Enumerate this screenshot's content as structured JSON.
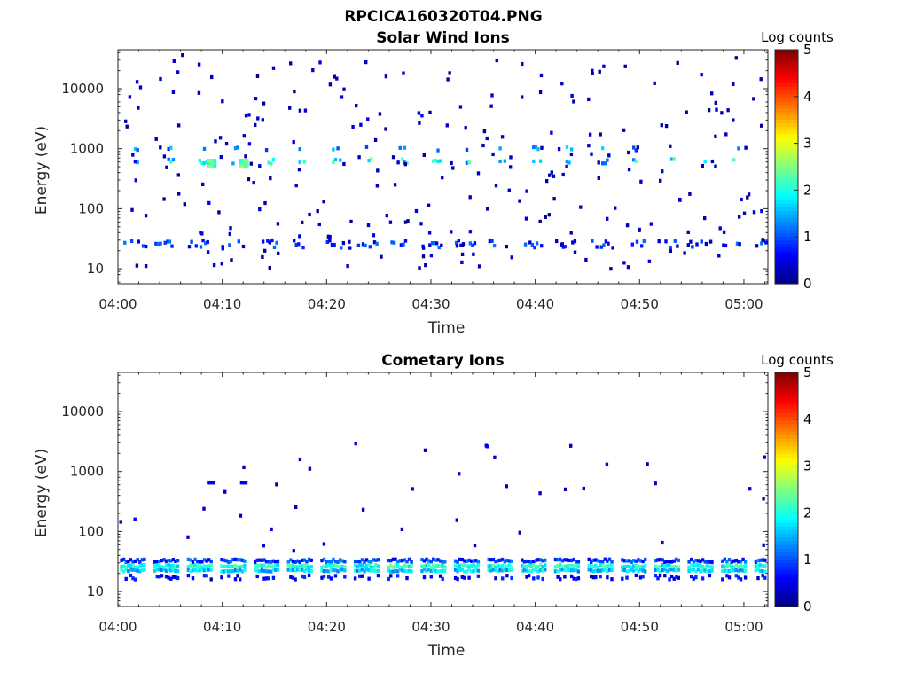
{
  "figure": {
    "title": "RPCICA160320T04.PNG"
  },
  "chart_data": [
    {
      "type": "heatmap",
      "title": "Solar Wind Ions",
      "xlabel": "Time",
      "ylabel": "Energy (eV)",
      "colorbar_label": "Log counts",
      "xticks": [
        "04:00",
        "04:10",
        "04:20",
        "04:30",
        "04:40",
        "04:50",
        "05:00"
      ],
      "xlim_minutes": [
        0,
        62.3
      ],
      "yticks": [
        "10",
        "100",
        "1000",
        "10000"
      ],
      "ylim_log10": [
        0.75,
        4.65
      ],
      "yscale": "log",
      "clim": [
        0,
        5
      ],
      "clim_ticks": [
        "0",
        "1",
        "2",
        "3",
        "4",
        "5"
      ],
      "colormap": "jet",
      "scan_period_min": 3.2,
      "dominant_bands": [
        {
          "energy_eV": 27,
          "log_counts": 0.7,
          "note": "intermittent every scan"
        },
        {
          "energy_eV": 650,
          "log_counts": 1.6,
          "note": "peaks ~2.6 near 04:09 and 04:12"
        },
        {
          "energy_eV": 1050,
          "log_counts": 1.2,
          "note": "intermittent"
        }
      ],
      "grid": false
    },
    {
      "type": "heatmap",
      "title": "Cometary Ions",
      "xlabel": "Time",
      "ylabel": "Energy (eV)",
      "colorbar_label": "Log counts",
      "xticks": [
        "04:00",
        "04:10",
        "04:20",
        "04:30",
        "04:40",
        "04:50",
        "05:00"
      ],
      "xlim_minutes": [
        0,
        62.3
      ],
      "yticks": [
        "10",
        "100",
        "1000",
        "10000"
      ],
      "ylim_log10": [
        0.75,
        4.65
      ],
      "yscale": "log",
      "clim": [
        0,
        5
      ],
      "clim_ticks": [
        "0",
        "1",
        "2",
        "3",
        "4",
        "5"
      ],
      "colormap": "jet",
      "scan_period_min": 3.2,
      "dominant_bands": [
        {
          "energy_eV": 28,
          "log_counts": 2.0,
          "note": "continuous band, peaks ~2.5"
        },
        {
          "energy_eV": 18,
          "log_counts": 0.6,
          "note": "lower edge"
        },
        {
          "energy_eV": 35,
          "log_counts": 0.9,
          "note": "upper edge"
        }
      ],
      "grid": false
    }
  ]
}
